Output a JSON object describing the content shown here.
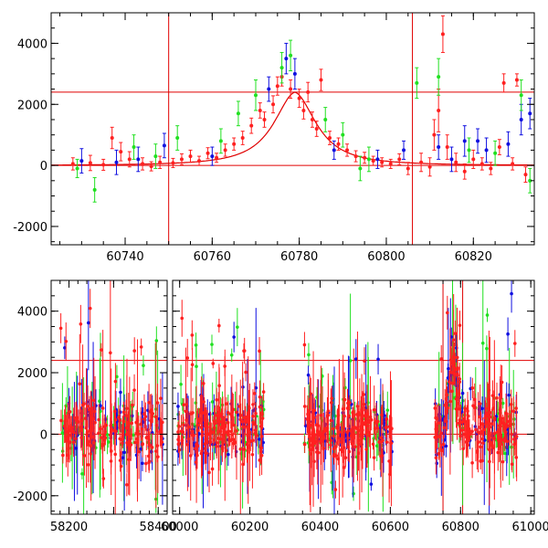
{
  "colors": {
    "fit": "#e00000",
    "red": "#ff2020",
    "blue": "#1010e0",
    "green": "#20e020",
    "frame": "#000000"
  },
  "chart_data": [
    {
      "type": "scatter",
      "panel": "top",
      "xlim": [
        60723,
        60834
      ],
      "ylim": [
        -2600,
        5000
      ],
      "xticks": [
        60740,
        60760,
        60780,
        60800,
        60820
      ],
      "yticks": [
        -2000,
        0,
        2000,
        4000
      ],
      "hlines": [
        0,
        2400
      ],
      "vlines": [
        60750,
        60806
      ],
      "fit_curve": {
        "model": "peak",
        "peak_x": 60779,
        "peak_y": 2400,
        "baseline": 0
      },
      "series": [
        {
          "color": "red",
          "points": [
            [
              60728,
              50,
              200
            ],
            [
              60732,
              80,
              250
            ],
            [
              60735,
              20,
              180
            ],
            [
              60737,
              900,
              350
            ],
            [
              60739,
              450,
              300
            ],
            [
              60741,
              200,
              250
            ],
            [
              60744,
              50,
              200
            ],
            [
              60746,
              -30,
              150
            ],
            [
              60748,
              100,
              200
            ],
            [
              60751,
              80,
              150
            ],
            [
              60753,
              200,
              180
            ],
            [
              60755,
              300,
              200
            ],
            [
              60757,
              150,
              150
            ],
            [
              60759,
              400,
              180
            ],
            [
              60761,
              250,
              150
            ],
            [
              60763,
              500,
              200
            ],
            [
              60765,
              700,
              200
            ],
            [
              60767,
              900,
              220
            ],
            [
              60769,
              1300,
              250
            ],
            [
              60771,
              1800,
              250
            ],
            [
              60772,
              1500,
              250
            ],
            [
              60774,
              2000,
              280
            ],
            [
              60775,
              2600,
              300
            ],
            [
              60776,
              2900,
              300
            ],
            [
              60778,
              2500,
              300
            ],
            [
              60780,
              2200,
              300
            ],
            [
              60781,
              1800,
              280
            ],
            [
              60782,
              2400,
              320
            ],
            [
              60783,
              1500,
              250
            ],
            [
              60784,
              1200,
              250
            ],
            [
              60785,
              2800,
              350
            ],
            [
              60787,
              900,
              220
            ],
            [
              60789,
              700,
              200
            ],
            [
              60791,
              500,
              200
            ],
            [
              60793,
              300,
              180
            ],
            [
              60795,
              250,
              180
            ],
            [
              60797,
              150,
              150
            ],
            [
              60799,
              100,
              150
            ],
            [
              60801,
              50,
              150
            ],
            [
              60803,
              200,
              180
            ],
            [
              60805,
              -100,
              200
            ],
            [
              60808,
              100,
              300
            ],
            [
              60810,
              -50,
              300
            ],
            [
              60811,
              1000,
              500
            ],
            [
              60812,
              1800,
              700
            ],
            [
              60813,
              4300,
              600
            ],
            [
              60814,
              600,
              400
            ],
            [
              60816,
              100,
              300
            ],
            [
              60818,
              -200,
              250
            ],
            [
              60820,
              200,
              300
            ],
            [
              60822,
              50,
              200
            ],
            [
              60824,
              -100,
              200
            ],
            [
              60826,
              600,
              250
            ],
            [
              60827,
              2700,
              300
            ],
            [
              60829,
              50,
              200
            ],
            [
              60830,
              2800,
              200
            ],
            [
              60832,
              -300,
              250
            ]
          ]
        },
        {
          "color": "blue",
          "points": [
            [
              60730,
              150,
              400
            ],
            [
              60738,
              100,
              400
            ],
            [
              60743,
              200,
              400
            ],
            [
              60749,
              650,
              400
            ],
            [
              60760,
              300,
              300
            ],
            [
              60773,
              2500,
              400
            ],
            [
              60777,
              3500,
              500
            ],
            [
              60779,
              3000,
              500
            ],
            [
              60788,
              500,
              300
            ],
            [
              60798,
              200,
              300
            ],
            [
              60804,
              500,
              300
            ],
            [
              60812,
              600,
              400
            ],
            [
              60815,
              200,
              400
            ],
            [
              60818,
              800,
              500
            ],
            [
              60821,
              800,
              400
            ],
            [
              60823,
              500,
              400
            ],
            [
              60828,
              700,
              400
            ],
            [
              60831,
              1500,
              500
            ],
            [
              60833,
              1700,
              500
            ]
          ]
        },
        {
          "color": "green",
          "points": [
            [
              60729,
              -100,
              300
            ],
            [
              60733,
              -800,
              400
            ],
            [
              60742,
              600,
              400
            ],
            [
              60747,
              300,
              400
            ],
            [
              60752,
              900,
              400
            ],
            [
              60762,
              800,
              400
            ],
            [
              60766,
              1700,
              400
            ],
            [
              60770,
              2300,
              500
            ],
            [
              60776,
              3200,
              500
            ],
            [
              60778,
              3600,
              500
            ],
            [
              60786,
              1500,
              400
            ],
            [
              60790,
              1000,
              400
            ],
            [
              60794,
              -100,
              400
            ],
            [
              60796,
              200,
              400
            ],
            [
              60807,
              2700,
              500
            ],
            [
              60812,
              2900,
              600
            ],
            [
              60819,
              500,
              400
            ],
            [
              60825,
              400,
              400
            ],
            [
              60831,
              2300,
              500
            ],
            [
              60833,
              -500,
              400
            ]
          ]
        }
      ]
    },
    {
      "type": "scatter",
      "panel": "bottom",
      "ylim": [
        -2600,
        5000
      ],
      "yticks": [
        -2000,
        0,
        2000,
        4000
      ],
      "hlines": [
        0,
        2400
      ],
      "vlines": [
        60750,
        60806
      ],
      "segments": [
        {
          "xlim": [
            58160,
            58420
          ],
          "xticks": [
            58200,
            58300,
            58400
          ]
        },
        {
          "xlim": [
            59980,
            61010
          ],
          "xticks": [
            60000,
            60200,
            60400,
            60600,
            60800,
            61000
          ]
        }
      ],
      "season_ranges": [
        [
          58180,
          58410
        ],
        [
          59995,
          60240
        ],
        [
          60355,
          60605
        ],
        [
          60725,
          60960
        ]
      ],
      "xticks_labeled": [
        58200,
        58400,
        60000,
        60200,
        60400,
        60600,
        60800,
        61000
      ]
    }
  ]
}
